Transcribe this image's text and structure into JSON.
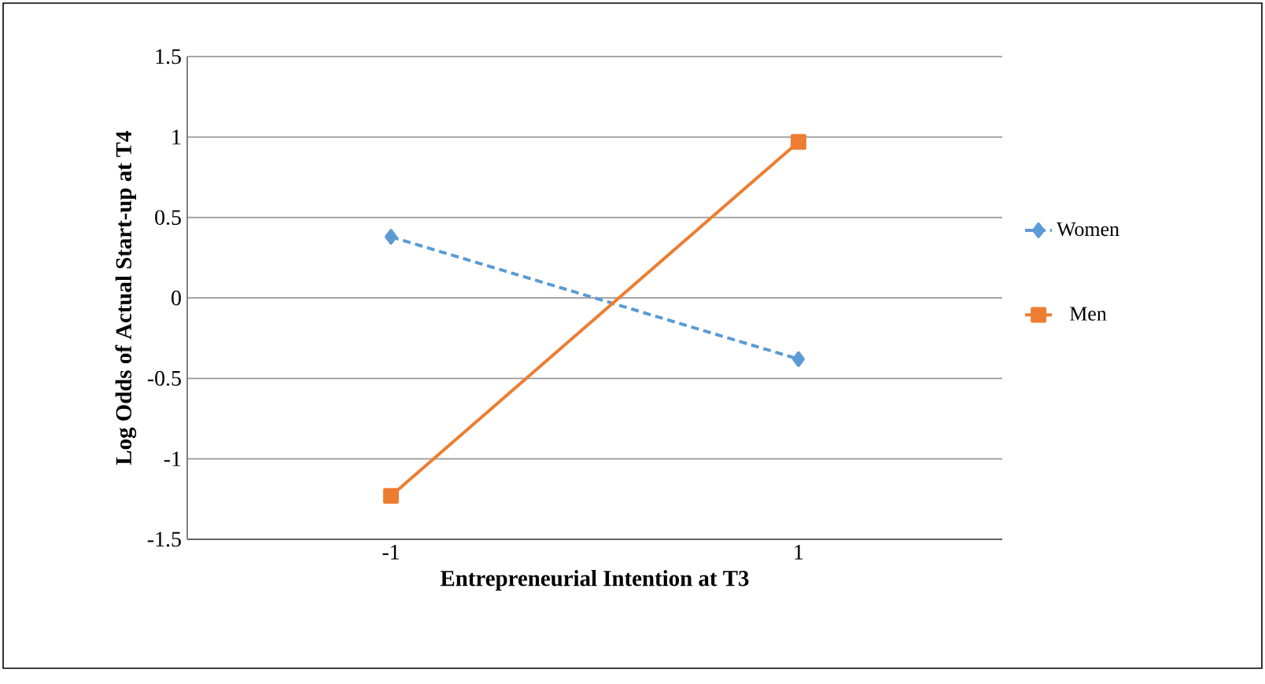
{
  "chart_data": {
    "type": "line",
    "xlabel": "Entrepreneurial Intention at T3",
    "ylabel": "Log Odds of Actual Start-up at T4",
    "categories": [
      "-1",
      "1"
    ],
    "series": [
      {
        "name": "Women",
        "color": "#5b9bd5",
        "values": [
          0.38,
          -0.38
        ],
        "marker": "diamond",
        "line_style": "dashed"
      },
      {
        "name": "Men",
        "color": "#ed7d31",
        "values": [
          -1.23,
          0.97
        ],
        "marker": "square",
        "line_style": "solid"
      }
    ],
    "ylim": [
      -1.5,
      1.5
    ],
    "yticks": [
      -1.5,
      -1,
      -0.5,
      0,
      0.5,
      1,
      1.5
    ],
    "grid": "y",
    "legend": "right"
  }
}
